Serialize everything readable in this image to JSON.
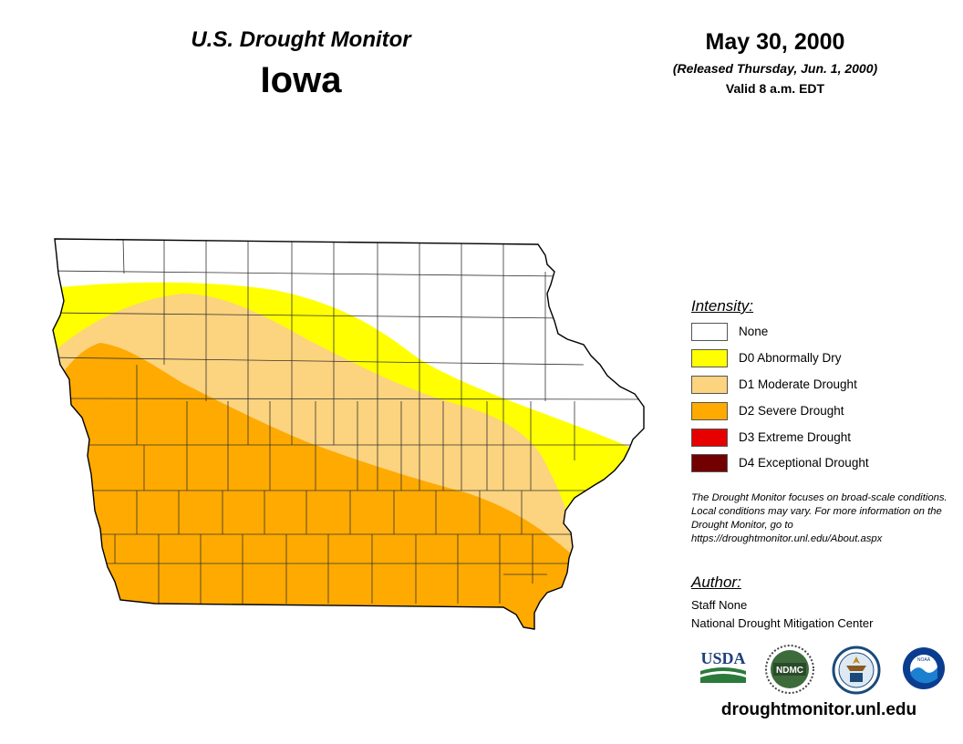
{
  "header": {
    "subtitle": "U.S. Drought Monitor",
    "state": "Iowa",
    "date": "May 30, 2000",
    "released": "(Released Thursday, Jun. 1, 2000)",
    "valid": "Valid 8 a.m. EDT"
  },
  "legend": {
    "title": "Intensity:",
    "items": [
      {
        "label": "None",
        "color": "#ffffff"
      },
      {
        "label": "D0 Abnormally Dry",
        "color": "#ffff00"
      },
      {
        "label": "D1 Moderate Drought",
        "color": "#fcd37f"
      },
      {
        "label": "D2 Severe Drought",
        "color": "#ffaa00"
      },
      {
        "label": "D3 Extreme Drought",
        "color": "#e60000"
      },
      {
        "label": "D4 Exceptional Drought",
        "color": "#730000"
      }
    ]
  },
  "note": "The Drought Monitor focuses on broad-scale conditions. Local conditions may vary. For more information on the Drought Monitor, go to https://droughtmonitor.unl.edu/About.aspx",
  "author": {
    "title": "Author:",
    "name": "Staff None",
    "org": "National Drought Mitigation Center"
  },
  "logos": {
    "usda": "USDA",
    "ndmc": "NDMC",
    "doc": "DOC",
    "noaa": "NOAA"
  },
  "footer_url": "droughtmonitor.unl.edu"
}
